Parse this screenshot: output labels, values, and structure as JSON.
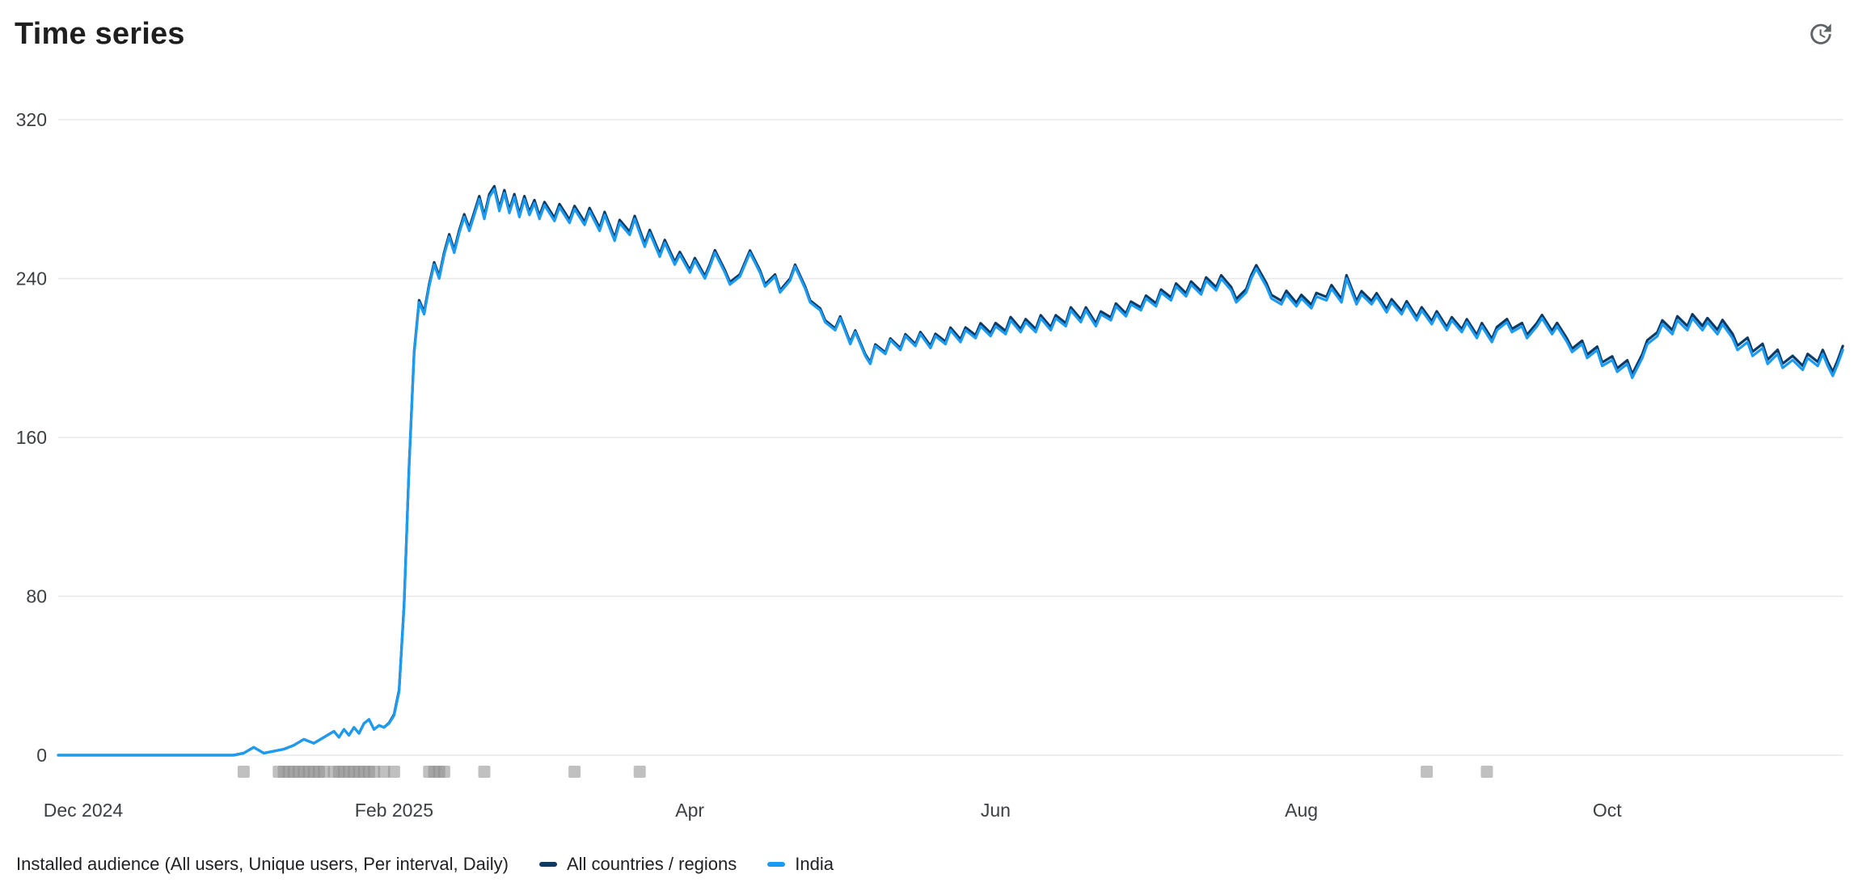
{
  "page": {
    "title": "Time series"
  },
  "header": {
    "interval_icon": "update-clock-icon"
  },
  "legend": {
    "metric_label": "Installed audience (All users, Unique users, Per interval, Daily)"
  },
  "colors": {
    "india_line": "#1d9bf0",
    "all_countries_line": "#0e3a66",
    "grid": "#e8e8e8",
    "axis_text": "#3c4043",
    "event_marker": "#8c8c8c",
    "title_text": "#1f1f1f"
  },
  "chart_data": {
    "type": "line",
    "title": "Time series",
    "metric": "Installed audience (All users, Unique users, Per interval, Daily)",
    "grid": true,
    "legend_position": "bottom",
    "ylim": [
      0,
      320
    ],
    "y_ticks": [
      0,
      80,
      160,
      240,
      320
    ],
    "x_unit": "days since 1 Dec 2024",
    "xlim_days": [
      -5,
      351
    ],
    "x_ticks": [
      {
        "label": "Dec 2024",
        "day": 0
      },
      {
        "label": "Feb 2025",
        "day": 62
      },
      {
        "label": "Apr",
        "day": 121
      },
      {
        "label": "Jun",
        "day": 182
      },
      {
        "label": "Aug",
        "day": 243
      },
      {
        "label": "Oct",
        "day": 304
      }
    ],
    "series": [
      {
        "name": "All countries / regions",
        "color": "#0e3a66",
        "derived": "india_plus_offset",
        "offset_points": [
          [
            -5,
            0
          ],
          [
            60,
            0
          ],
          [
            64,
            1
          ],
          [
            80,
            1.5
          ],
          [
            110,
            1.5
          ],
          [
            140,
            1
          ],
          [
            160,
            0.8
          ],
          [
            182,
            1.6
          ],
          [
            210,
            1.4
          ],
          [
            240,
            1.8
          ],
          [
            270,
            1.5
          ],
          [
            300,
            1.7
          ],
          [
            330,
            2.2
          ],
          [
            351,
            2
          ]
        ]
      },
      {
        "name": "India",
        "color": "#1d9bf0",
        "points": [
          [
            -5,
            0
          ],
          [
            0,
            0
          ],
          [
            8,
            0
          ],
          [
            16,
            0
          ],
          [
            24,
            0
          ],
          [
            30,
            0
          ],
          [
            32,
            1
          ],
          [
            34,
            4
          ],
          [
            36,
            1
          ],
          [
            38,
            2
          ],
          [
            40,
            3
          ],
          [
            42,
            5
          ],
          [
            44,
            8
          ],
          [
            46,
            6
          ],
          [
            48,
            9
          ],
          [
            50,
            12
          ],
          [
            51,
            9
          ],
          [
            52,
            13
          ],
          [
            53,
            10
          ],
          [
            54,
            14
          ],
          [
            55,
            11
          ],
          [
            56,
            16
          ],
          [
            57,
            18
          ],
          [
            58,
            13
          ],
          [
            59,
            15
          ],
          [
            60,
            14
          ],
          [
            61,
            16
          ],
          [
            62,
            20
          ],
          [
            63,
            32
          ],
          [
            64,
            75
          ],
          [
            65,
            145
          ],
          [
            66,
            202
          ],
          [
            67,
            228
          ],
          [
            68,
            222
          ],
          [
            69,
            236
          ],
          [
            70,
            247
          ],
          [
            71,
            240
          ],
          [
            72,
            252
          ],
          [
            73,
            261
          ],
          [
            74,
            253
          ],
          [
            75,
            263
          ],
          [
            76,
            271
          ],
          [
            77,
            264
          ],
          [
            78,
            272
          ],
          [
            79,
            280
          ],
          [
            80,
            270
          ],
          [
            81,
            281
          ],
          [
            82,
            285
          ],
          [
            83,
            274
          ],
          [
            84,
            283
          ],
          [
            85,
            273
          ],
          [
            86,
            281
          ],
          [
            87,
            271
          ],
          [
            88,
            280
          ],
          [
            89,
            272
          ],
          [
            90,
            278
          ],
          [
            91,
            270
          ],
          [
            92,
            277
          ],
          [
            94,
            269
          ],
          [
            95,
            276
          ],
          [
            97,
            268
          ],
          [
            98,
            275
          ],
          [
            100,
            267
          ],
          [
            101,
            274
          ],
          [
            103,
            264
          ],
          [
            104,
            272
          ],
          [
            106,
            259
          ],
          [
            107,
            268
          ],
          [
            109,
            262
          ],
          [
            110,
            270
          ],
          [
            112,
            256
          ],
          [
            113,
            263
          ],
          [
            115,
            251
          ],
          [
            116,
            258
          ],
          [
            118,
            247
          ],
          [
            119,
            252
          ],
          [
            121,
            243
          ],
          [
            122,
            249
          ],
          [
            124,
            240
          ],
          [
            125,
            246
          ],
          [
            126,
            253
          ],
          [
            128,
            243
          ],
          [
            129,
            237
          ],
          [
            131,
            241
          ],
          [
            132,
            247
          ],
          [
            133,
            253
          ],
          [
            135,
            243
          ],
          [
            136,
            236
          ],
          [
            138,
            241
          ],
          [
            139,
            233
          ],
          [
            141,
            239
          ],
          [
            142,
            246
          ],
          [
            144,
            235
          ],
          [
            145,
            228
          ],
          [
            147,
            224
          ],
          [
            148,
            218
          ],
          [
            150,
            214
          ],
          [
            151,
            220
          ],
          [
            153,
            207
          ],
          [
            154,
            213
          ],
          [
            156,
            201
          ],
          [
            157,
            197
          ],
          [
            158,
            206
          ],
          [
            160,
            202
          ],
          [
            161,
            209
          ],
          [
            163,
            204
          ],
          [
            164,
            211
          ],
          [
            166,
            206
          ],
          [
            167,
            212
          ],
          [
            169,
            205
          ],
          [
            170,
            211
          ],
          [
            172,
            207
          ],
          [
            173,
            214
          ],
          [
            175,
            208
          ],
          [
            176,
            214
          ],
          [
            178,
            210
          ],
          [
            179,
            216
          ],
          [
            181,
            211
          ],
          [
            182,
            216
          ],
          [
            184,
            212
          ],
          [
            185,
            219
          ],
          [
            187,
            213
          ],
          [
            188,
            218
          ],
          [
            190,
            213
          ],
          [
            191,
            220
          ],
          [
            193,
            214
          ],
          [
            194,
            220
          ],
          [
            196,
            216
          ],
          [
            197,
            224
          ],
          [
            199,
            218
          ],
          [
            200,
            224
          ],
          [
            202,
            216
          ],
          [
            203,
            222
          ],
          [
            205,
            219
          ],
          [
            206,
            226
          ],
          [
            208,
            221
          ],
          [
            209,
            227
          ],
          [
            211,
            224
          ],
          [
            212,
            230
          ],
          [
            214,
            226
          ],
          [
            215,
            233
          ],
          [
            217,
            229
          ],
          [
            218,
            236
          ],
          [
            220,
            231
          ],
          [
            221,
            237
          ],
          [
            223,
            232
          ],
          [
            224,
            239
          ],
          [
            226,
            234
          ],
          [
            227,
            240
          ],
          [
            229,
            234
          ],
          [
            230,
            228
          ],
          [
            232,
            233
          ],
          [
            233,
            240
          ],
          [
            234,
            245
          ],
          [
            236,
            236
          ],
          [
            237,
            230
          ],
          [
            239,
            227
          ],
          [
            240,
            232
          ],
          [
            242,
            226
          ],
          [
            243,
            230
          ],
          [
            245,
            225
          ],
          [
            246,
            231
          ],
          [
            248,
            229
          ],
          [
            249,
            235
          ],
          [
            251,
            228
          ],
          [
            252,
            240
          ],
          [
            254,
            227
          ],
          [
            255,
            232
          ],
          [
            257,
            227
          ],
          [
            258,
            231
          ],
          [
            260,
            223
          ],
          [
            261,
            228
          ],
          [
            263,
            222
          ],
          [
            264,
            227
          ],
          [
            266,
            219
          ],
          [
            267,
            224
          ],
          [
            269,
            217
          ],
          [
            270,
            222
          ],
          [
            272,
            214
          ],
          [
            273,
            219
          ],
          [
            275,
            213
          ],
          [
            276,
            218
          ],
          [
            278,
            210
          ],
          [
            279,
            216
          ],
          [
            281,
            208
          ],
          [
            282,
            214
          ],
          [
            284,
            218
          ],
          [
            285,
            213
          ],
          [
            287,
            216
          ],
          [
            288,
            210
          ],
          [
            290,
            216
          ],
          [
            291,
            220
          ],
          [
            293,
            212
          ],
          [
            294,
            216
          ],
          [
            296,
            208
          ],
          [
            297,
            203
          ],
          [
            299,
            207
          ],
          [
            300,
            200
          ],
          [
            302,
            204
          ],
          [
            303,
            196
          ],
          [
            305,
            199
          ],
          [
            306,
            193
          ],
          [
            308,
            197
          ],
          [
            309,
            190
          ],
          [
            311,
            200
          ],
          [
            312,
            207
          ],
          [
            314,
            211
          ],
          [
            315,
            217
          ],
          [
            317,
            212
          ],
          [
            318,
            219
          ],
          [
            320,
            214
          ],
          [
            321,
            220
          ],
          [
            323,
            214
          ],
          [
            324,
            218
          ],
          [
            326,
            212
          ],
          [
            327,
            217
          ],
          [
            329,
            210
          ],
          [
            330,
            204
          ],
          [
            332,
            208
          ],
          [
            333,
            201
          ],
          [
            335,
            205
          ],
          [
            336,
            197
          ],
          [
            338,
            202
          ],
          [
            339,
            195
          ],
          [
            341,
            199
          ],
          [
            343,
            194
          ],
          [
            344,
            200
          ],
          [
            346,
            196
          ],
          [
            347,
            202
          ],
          [
            348,
            196
          ],
          [
            349,
            191
          ],
          [
            350,
            197
          ],
          [
            351,
            204
          ]
        ]
      }
    ],
    "event_markers": {
      "color": "#8c8c8c",
      "days": [
        32,
        39,
        40,
        41,
        42,
        43,
        44,
        45,
        46,
        47,
        48,
        50,
        51,
        52,
        53,
        54,
        55,
        56,
        57,
        58,
        60,
        62,
        69,
        70,
        71,
        72,
        80,
        98,
        111,
        268,
        280
      ]
    }
  }
}
